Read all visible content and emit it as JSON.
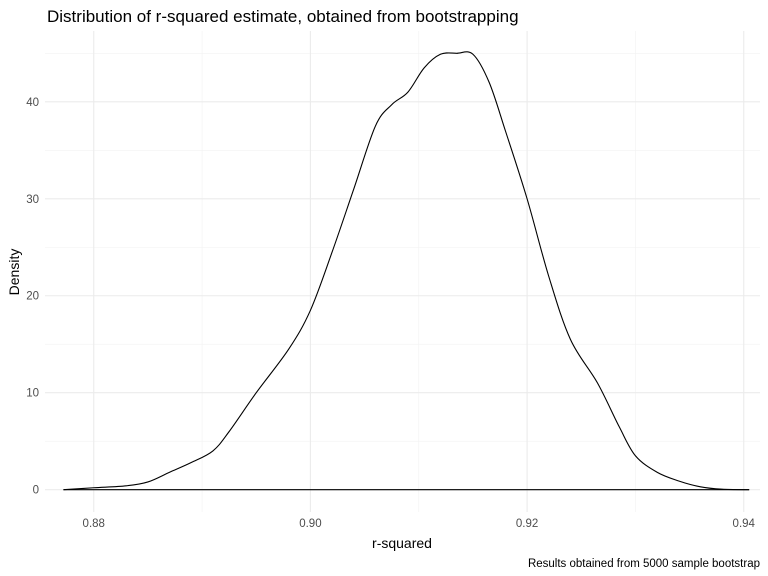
{
  "chart_data": {
    "type": "line",
    "title": "Distribution of r-squared estimate, obtained from bootstrapping",
    "xlabel": "r-squared",
    "ylabel": "Density",
    "caption": "Results obtained from 5000 sample bootstrap",
    "xlim": [
      0.8755,
      0.9415
    ],
    "ylim": [
      -2.3,
      47.3
    ],
    "x_ticks": [
      0.88,
      0.9,
      0.92,
      0.94
    ],
    "x_tick_labels": [
      "0.88",
      "0.90",
      "0.92",
      "0.94"
    ],
    "y_ticks": [
      0,
      10,
      20,
      30,
      40
    ],
    "y_tick_labels": [
      "0",
      "10",
      "20",
      "30",
      "40"
    ],
    "grid": true,
    "series": [
      {
        "x": [
          0.8772,
          0.88,
          0.883,
          0.885,
          0.887,
          0.889,
          0.891,
          0.8925,
          0.895,
          0.898,
          0.9,
          0.902,
          0.904,
          0.906,
          0.9075,
          0.909,
          0.9105,
          0.912,
          0.9135,
          0.915,
          0.9165,
          0.918,
          0.92,
          0.922,
          0.924,
          0.9265,
          0.9285,
          0.93,
          0.932,
          0.934,
          0.936,
          0.938,
          0.9405
        ],
        "y": [
          0.0,
          0.2,
          0.4,
          0.8,
          1.8,
          2.8,
          4.0,
          6.0,
          10.0,
          14.5,
          18.5,
          24.5,
          31.0,
          37.5,
          39.7,
          41.0,
          43.5,
          44.9,
          45.0,
          44.9,
          42.0,
          37.0,
          30.0,
          22.0,
          15.5,
          11.0,
          6.5,
          3.5,
          1.8,
          0.9,
          0.3,
          0.05,
          0.0
        ]
      }
    ]
  }
}
